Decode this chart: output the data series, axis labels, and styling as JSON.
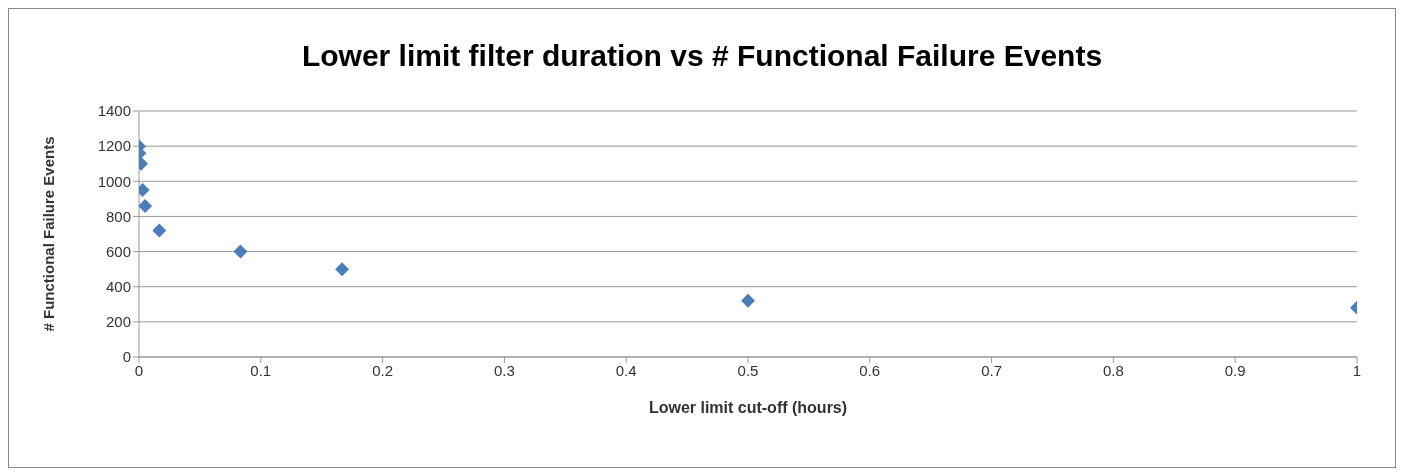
{
  "chart_data": {
    "type": "scatter",
    "title": "Lower limit filter duration vs # Functional Failure Events",
    "xlabel": "Lower limit cut-off (hours)",
    "ylabel": "# Functional Failure Events",
    "x": [
      0,
      0.0003,
      0.0017,
      0.003,
      0.005,
      0.0167,
      0.0833,
      0.1667,
      0.5,
      1
    ],
    "series": [
      {
        "color": "#4a7ebb",
        "values": [
          1200,
          1160,
          1100,
          950,
          860,
          720,
          600,
          500,
          320,
          280
        ]
      }
    ],
    "xlim": [
      0,
      1
    ],
    "xticks": [
      0,
      0.1,
      0.2,
      0.3,
      0.4,
      0.5,
      0.6,
      0.7,
      0.8,
      0.9,
      1
    ],
    "ylim": [
      0,
      1400
    ],
    "yticks": [
      0,
      200,
      400,
      600,
      800,
      1000,
      1200,
      1400
    ],
    "grid": "y",
    "marker": "diamond"
  }
}
